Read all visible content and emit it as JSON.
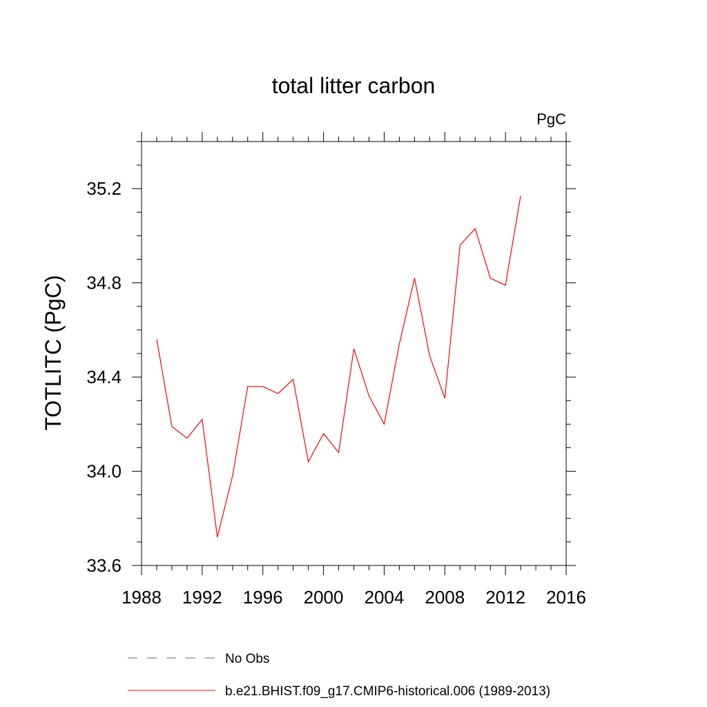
{
  "chart_data": {
    "type": "line",
    "title": "total litter carbon",
    "units_label": "PgC",
    "ylabel": "TOTLITC  (PgC)",
    "xlabel": "",
    "xlim": [
      1988,
      2016
    ],
    "ylim": [
      33.6,
      35.4
    ],
    "xticks": [
      1988,
      1992,
      1996,
      2000,
      2004,
      2008,
      2012,
      2016
    ],
    "xtick_labels": [
      "1988",
      "1992",
      "1996",
      "2000",
      "2004",
      "2008",
      "2012",
      "2016"
    ],
    "yticks": [
      33.6,
      34.0,
      34.4,
      34.8,
      35.2
    ],
    "ytick_labels": [
      "33.6",
      "34.0",
      "34.4",
      "34.8",
      "35.2"
    ],
    "grid": false,
    "series": [
      {
        "name": "b.e21.BHIST.f09_g17.CMIP6-historical.006 (1989-2013)",
        "color": "#ff0000",
        "x": [
          1989,
          1990,
          1991,
          1992,
          1993,
          1994,
          1995,
          1996,
          1997,
          1998,
          1999,
          2000,
          2001,
          2002,
          2003,
          2004,
          2005,
          2006,
          2007,
          2008,
          2009,
          2010,
          2011,
          2012,
          2013
        ],
        "y": [
          34.56,
          34.19,
          34.14,
          34.22,
          33.72,
          33.98,
          34.36,
          34.36,
          34.33,
          34.39,
          34.04,
          34.16,
          34.08,
          34.52,
          34.32,
          34.2,
          34.54,
          34.82,
          34.49,
          34.31,
          34.96,
          35.03,
          34.82,
          34.79,
          35.17
        ]
      }
    ],
    "legend": {
      "placement": "bottom",
      "entries": [
        {
          "label": "No Obs",
          "style": "dashed",
          "color": "#6b5fb5"
        },
        {
          "label": "b.e21.BHIST.f09_g17.CMIP6-historical.006 (1989-2013)",
          "style": "solid",
          "color": "#ff0000"
        }
      ]
    }
  }
}
